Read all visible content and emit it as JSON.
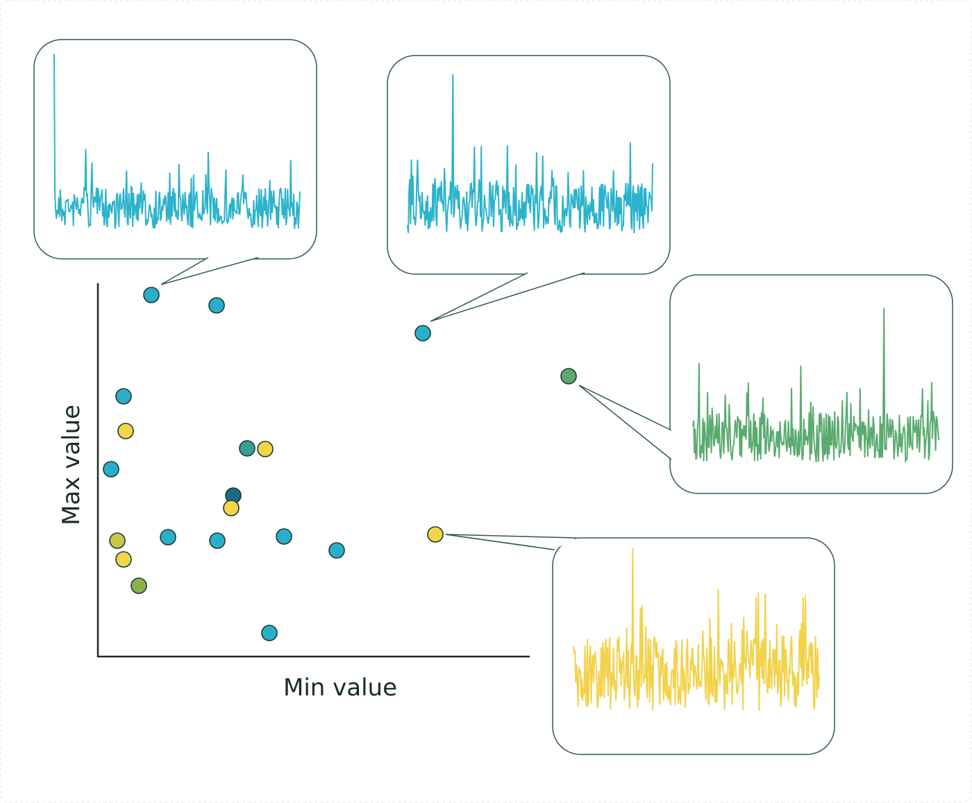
{
  "axes": {
    "x_label": "Min value",
    "y_label": "Max value"
  }
}
